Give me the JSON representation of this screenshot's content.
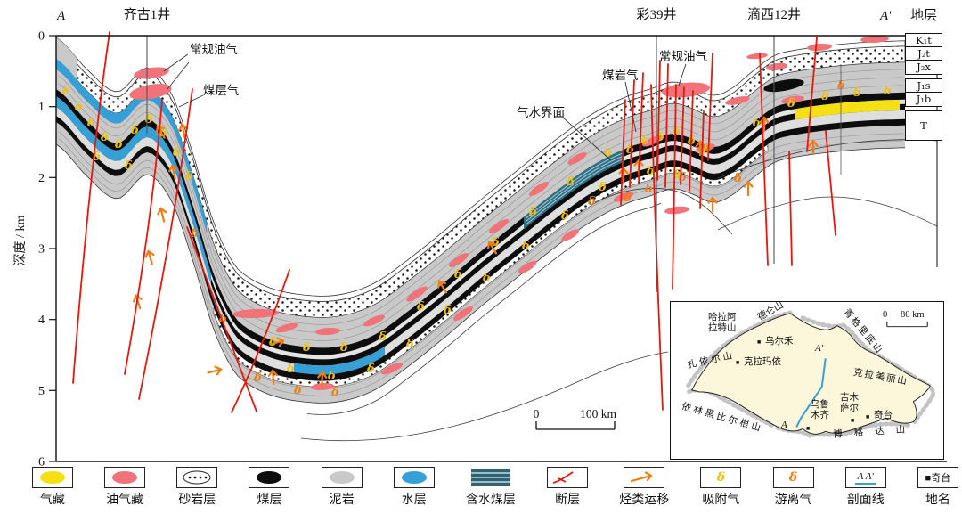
{
  "header": {
    "left_marker": "A",
    "right_marker": "A'",
    "strata_label": "地层"
  },
  "wells": [
    {
      "name": "齐古1井"
    },
    {
      "name": "彩39井"
    },
    {
      "name": "滴西12井"
    }
  ],
  "axis": {
    "label": "深度 / km",
    "ticks": [
      "0",
      "1",
      "2",
      "3",
      "4",
      "5",
      "6"
    ]
  },
  "annotations": {
    "conventional_left": "常规油气",
    "coalbed_methane": "煤层气",
    "gas_water_contact": "气水界面",
    "coal_rock_gas": "煤岩气",
    "conventional_right": "常规油气"
  },
  "strat_column": [
    {
      "code": "K₁t"
    },
    {
      "code": "J₂t"
    },
    {
      "code": "J₂x"
    },
    {
      "code": "J₁s"
    },
    {
      "code": "J₁b"
    },
    {
      "code": "T"
    }
  ],
  "scalebar": {
    "zero": "0",
    "length": "100 km"
  },
  "map": {
    "marker": "■",
    "scalebar": {
      "zero": "0",
      "length": "80 km"
    },
    "profile_start": "A'",
    "profile_end": "A",
    "cities": [
      {
        "name": "乌尔禾"
      },
      {
        "name": "克拉玛依"
      },
      {
        "name": "乌鲁木齐"
      },
      {
        "name": "吉木萨尔"
      },
      {
        "name": "奇台"
      }
    ],
    "mountains": [
      {
        "name": "哈拉阿拉特山"
      },
      {
        "name": "德仑山"
      },
      {
        "name": "扎依尔山"
      },
      {
        "name": "青格里底山"
      },
      {
        "name": "克拉美丽山"
      },
      {
        "name": "博格达山"
      },
      {
        "name": "依林黑比尔根山"
      }
    ]
  },
  "legend": [
    {
      "label": "气藏"
    },
    {
      "label": "油气藏"
    },
    {
      "label": "砂岩层"
    },
    {
      "label": "煤层"
    },
    {
      "label": "泥岩"
    },
    {
      "label": "水层"
    },
    {
      "label": "含水煤层"
    },
    {
      "label": "断层"
    },
    {
      "label": "烃类运移"
    },
    {
      "label": "吸附气"
    },
    {
      "label": "游离气"
    },
    {
      "label": "剖面线",
      "sample": "A A'"
    },
    {
      "label": "地名",
      "sample": "奇台"
    }
  ],
  "symbols": {
    "glyph": "δ"
  },
  "colors": {
    "mud": "#c9c9c9",
    "pink": "#f0737a",
    "red": "#e8170c",
    "yellow": "#f5e014",
    "blue2": "#36a0d6",
    "orange": "#ef7d12",
    "ygas": "#eec200",
    "cream": "#fcf6da"
  }
}
